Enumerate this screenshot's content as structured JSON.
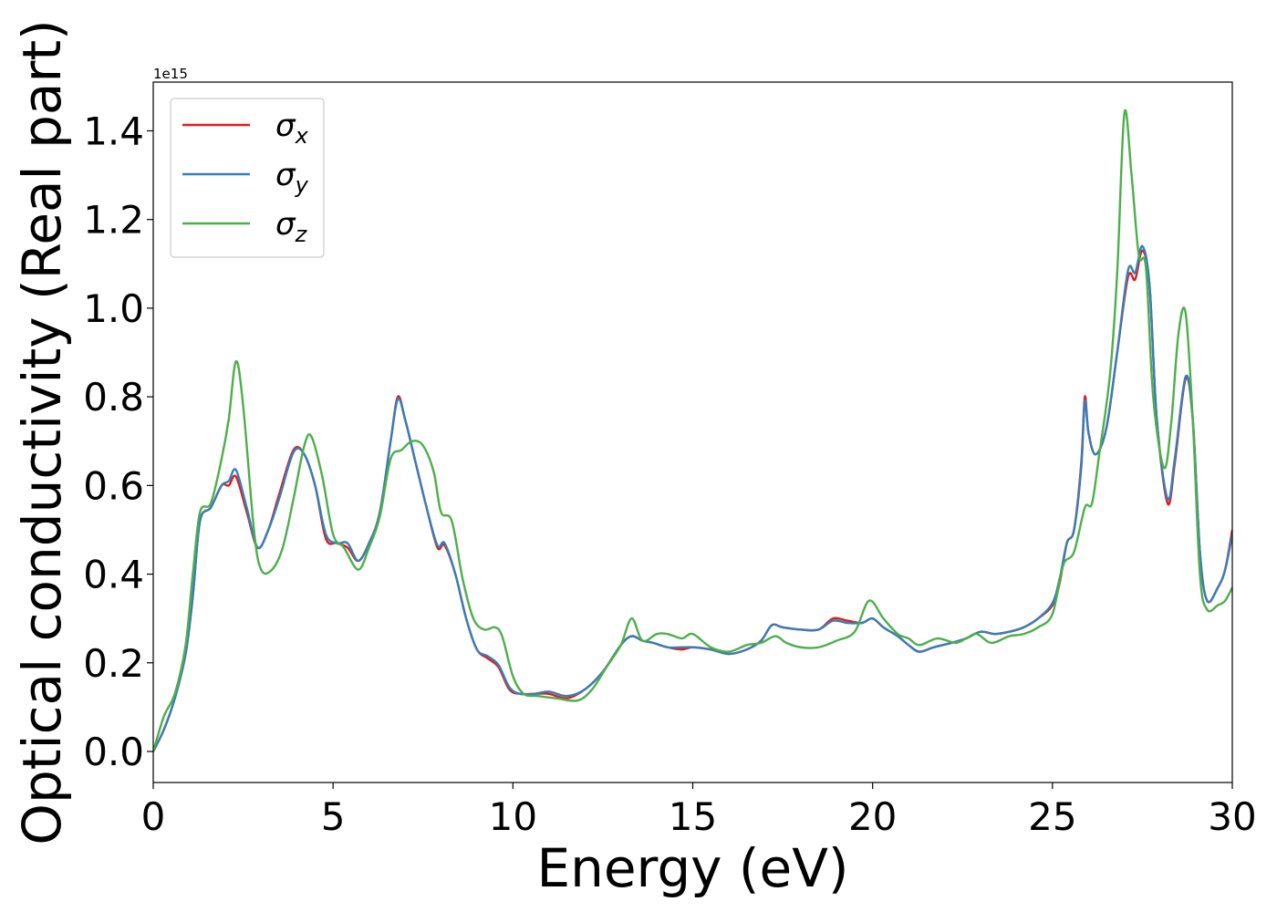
{
  "chart_data": {
    "type": "line",
    "xlabel": "Energy (eV)",
    "ylabel": "Optical conductivity (Real part)",
    "y_offset_text": "1e15",
    "xlim": [
      0,
      30
    ],
    "ylim": [
      -0.07,
      1.51
    ],
    "x_ticks": [
      0,
      5,
      10,
      15,
      20,
      25,
      30
    ],
    "x_tick_labels": [
      "0",
      "5",
      "10",
      "15",
      "20",
      "25",
      "30"
    ],
    "y_ticks": [
      0.0,
      0.2,
      0.4,
      0.6,
      0.8,
      1.0,
      1.2,
      1.4
    ],
    "y_tick_labels": [
      "0.0",
      "0.2",
      "0.4",
      "0.6",
      "0.8",
      "1.0",
      "1.2",
      "1.4"
    ],
    "grid": false,
    "legend_position": "top-left",
    "series": [
      {
        "name": "σ",
        "subscript": "x",
        "color": "#e41a1c",
        "points": [
          [
            0,
            0
          ],
          [
            0.3,
            0.05
          ],
          [
            0.6,
            0.12
          ],
          [
            0.9,
            0.22
          ],
          [
            1.1,
            0.35
          ],
          [
            1.3,
            0.52
          ],
          [
            1.6,
            0.55
          ],
          [
            1.9,
            0.6
          ],
          [
            2.1,
            0.6
          ],
          [
            2.3,
            0.62
          ],
          [
            2.6,
            0.54
          ],
          [
            2.9,
            0.46
          ],
          [
            3.2,
            0.5
          ],
          [
            3.5,
            0.58
          ],
          [
            3.9,
            0.68
          ],
          [
            4.2,
            0.67
          ],
          [
            4.5,
            0.6
          ],
          [
            4.8,
            0.48
          ],
          [
            5.1,
            0.47
          ],
          [
            5.4,
            0.46
          ],
          [
            5.7,
            0.43
          ],
          [
            6.0,
            0.47
          ],
          [
            6.3,
            0.54
          ],
          [
            6.6,
            0.7
          ],
          [
            6.8,
            0.8
          ],
          [
            7.0,
            0.75
          ],
          [
            7.3,
            0.65
          ],
          [
            7.6,
            0.55
          ],
          [
            7.9,
            0.46
          ],
          [
            8.1,
            0.465
          ],
          [
            8.4,
            0.4
          ],
          [
            8.7,
            0.3
          ],
          [
            9.0,
            0.23
          ],
          [
            9.3,
            0.21
          ],
          [
            9.6,
            0.19
          ],
          [
            9.9,
            0.14
          ],
          [
            10.2,
            0.13
          ],
          [
            10.6,
            0.13
          ],
          [
            11.0,
            0.13
          ],
          [
            11.5,
            0.12
          ],
          [
            12.0,
            0.14
          ],
          [
            12.5,
            0.18
          ],
          [
            13.0,
            0.24
          ],
          [
            13.3,
            0.26
          ],
          [
            13.6,
            0.25
          ],
          [
            13.9,
            0.245
          ],
          [
            14.3,
            0.235
          ],
          [
            14.7,
            0.23
          ],
          [
            15.0,
            0.235
          ],
          [
            15.5,
            0.23
          ],
          [
            16.0,
            0.22
          ],
          [
            16.5,
            0.23
          ],
          [
            16.9,
            0.25
          ],
          [
            17.2,
            0.285
          ],
          [
            17.5,
            0.28
          ],
          [
            18.0,
            0.275
          ],
          [
            18.5,
            0.275
          ],
          [
            18.9,
            0.3
          ],
          [
            19.3,
            0.295
          ],
          [
            19.7,
            0.29
          ],
          [
            20.0,
            0.3
          ],
          [
            20.3,
            0.28
          ],
          [
            20.7,
            0.26
          ],
          [
            21.0,
            0.24
          ],
          [
            21.3,
            0.225
          ],
          [
            21.7,
            0.235
          ],
          [
            22.2,
            0.245
          ],
          [
            22.6,
            0.255
          ],
          [
            23.0,
            0.27
          ],
          [
            23.4,
            0.265
          ],
          [
            23.8,
            0.27
          ],
          [
            24.2,
            0.28
          ],
          [
            24.6,
            0.3
          ],
          [
            25.0,
            0.33
          ],
          [
            25.2,
            0.38
          ],
          [
            25.4,
            0.47
          ],
          [
            25.6,
            0.5
          ],
          [
            25.8,
            0.65
          ],
          [
            25.9,
            0.8
          ],
          [
            26.0,
            0.72
          ],
          [
            26.2,
            0.67
          ],
          [
            26.5,
            0.73
          ],
          [
            26.8,
            0.9
          ],
          [
            27.1,
            1.07
          ],
          [
            27.3,
            1.065
          ],
          [
            27.5,
            1.13
          ],
          [
            27.7,
            1.05
          ],
          [
            27.9,
            0.75
          ],
          [
            28.2,
            0.56
          ],
          [
            28.4,
            0.65
          ],
          [
            28.7,
            0.84
          ],
          [
            28.9,
            0.75
          ],
          [
            29.1,
            0.45
          ],
          [
            29.3,
            0.34
          ],
          [
            29.6,
            0.37
          ],
          [
            29.8,
            0.41
          ],
          [
            30.0,
            0.5
          ]
        ]
      },
      {
        "name": "σ",
        "subscript": "y",
        "color": "#377eb8",
        "points": [
          [
            0,
            0
          ],
          [
            0.3,
            0.05
          ],
          [
            0.6,
            0.12
          ],
          [
            0.9,
            0.22
          ],
          [
            1.1,
            0.35
          ],
          [
            1.3,
            0.52
          ],
          [
            1.6,
            0.55
          ],
          [
            1.9,
            0.6
          ],
          [
            2.1,
            0.61
          ],
          [
            2.3,
            0.635
          ],
          [
            2.6,
            0.55
          ],
          [
            2.9,
            0.46
          ],
          [
            3.2,
            0.5
          ],
          [
            3.5,
            0.57
          ],
          [
            3.9,
            0.675
          ],
          [
            4.2,
            0.67
          ],
          [
            4.5,
            0.6
          ],
          [
            4.8,
            0.49
          ],
          [
            5.1,
            0.47
          ],
          [
            5.4,
            0.47
          ],
          [
            5.7,
            0.43
          ],
          [
            6.0,
            0.47
          ],
          [
            6.3,
            0.54
          ],
          [
            6.6,
            0.7
          ],
          [
            6.8,
            0.795
          ],
          [
            7.0,
            0.75
          ],
          [
            7.3,
            0.65
          ],
          [
            7.6,
            0.55
          ],
          [
            7.9,
            0.465
          ],
          [
            8.1,
            0.47
          ],
          [
            8.4,
            0.4
          ],
          [
            8.7,
            0.3
          ],
          [
            9.0,
            0.23
          ],
          [
            9.3,
            0.215
          ],
          [
            9.6,
            0.195
          ],
          [
            9.9,
            0.145
          ],
          [
            10.2,
            0.13
          ],
          [
            10.6,
            0.13
          ],
          [
            11.0,
            0.135
          ],
          [
            11.5,
            0.125
          ],
          [
            12.0,
            0.14
          ],
          [
            12.5,
            0.18
          ],
          [
            13.0,
            0.24
          ],
          [
            13.3,
            0.26
          ],
          [
            13.6,
            0.25
          ],
          [
            13.9,
            0.245
          ],
          [
            14.3,
            0.235
          ],
          [
            14.7,
            0.235
          ],
          [
            15.0,
            0.235
          ],
          [
            15.5,
            0.23
          ],
          [
            16.0,
            0.22
          ],
          [
            16.5,
            0.23
          ],
          [
            16.9,
            0.25
          ],
          [
            17.2,
            0.285
          ],
          [
            17.5,
            0.28
          ],
          [
            18.0,
            0.275
          ],
          [
            18.5,
            0.275
          ],
          [
            18.9,
            0.295
          ],
          [
            19.3,
            0.29
          ],
          [
            19.7,
            0.29
          ],
          [
            20.0,
            0.3
          ],
          [
            20.3,
            0.28
          ],
          [
            20.7,
            0.26
          ],
          [
            21.0,
            0.24
          ],
          [
            21.3,
            0.225
          ],
          [
            21.7,
            0.235
          ],
          [
            22.2,
            0.245
          ],
          [
            22.6,
            0.255
          ],
          [
            23.0,
            0.27
          ],
          [
            23.4,
            0.265
          ],
          [
            23.8,
            0.27
          ],
          [
            24.2,
            0.28
          ],
          [
            24.6,
            0.3
          ],
          [
            25.0,
            0.335
          ],
          [
            25.2,
            0.39
          ],
          [
            25.4,
            0.47
          ],
          [
            25.6,
            0.5
          ],
          [
            25.8,
            0.64
          ],
          [
            25.9,
            0.79
          ],
          [
            26.0,
            0.72
          ],
          [
            26.2,
            0.67
          ],
          [
            26.5,
            0.73
          ],
          [
            26.8,
            0.9
          ],
          [
            27.1,
            1.085
          ],
          [
            27.3,
            1.08
          ],
          [
            27.5,
            1.14
          ],
          [
            27.7,
            1.05
          ],
          [
            27.9,
            0.75
          ],
          [
            28.2,
            0.57
          ],
          [
            28.4,
            0.66
          ],
          [
            28.7,
            0.845
          ],
          [
            28.9,
            0.75
          ],
          [
            29.1,
            0.45
          ],
          [
            29.3,
            0.34
          ],
          [
            29.6,
            0.37
          ],
          [
            29.8,
            0.41
          ],
          [
            30.0,
            0.49
          ]
        ]
      },
      {
        "name": "σ",
        "subscript": "z",
        "color": "#4daf4a",
        "points": [
          [
            0,
            0
          ],
          [
            0.3,
            0.08
          ],
          [
            0.6,
            0.13
          ],
          [
            0.9,
            0.24
          ],
          [
            1.1,
            0.4
          ],
          [
            1.3,
            0.54
          ],
          [
            1.6,
            0.56
          ],
          [
            1.9,
            0.66
          ],
          [
            2.1,
            0.75
          ],
          [
            2.3,
            0.88
          ],
          [
            2.5,
            0.78
          ],
          [
            2.8,
            0.5
          ],
          [
            3.0,
            0.41
          ],
          [
            3.3,
            0.41
          ],
          [
            3.6,
            0.46
          ],
          [
            3.9,
            0.57
          ],
          [
            4.2,
            0.69
          ],
          [
            4.4,
            0.71
          ],
          [
            4.7,
            0.62
          ],
          [
            5.0,
            0.49
          ],
          [
            5.3,
            0.46
          ],
          [
            5.7,
            0.41
          ],
          [
            6.0,
            0.46
          ],
          [
            6.3,
            0.53
          ],
          [
            6.6,
            0.66
          ],
          [
            6.9,
            0.68
          ],
          [
            7.2,
            0.7
          ],
          [
            7.5,
            0.69
          ],
          [
            7.8,
            0.63
          ],
          [
            8.0,
            0.54
          ],
          [
            8.3,
            0.52
          ],
          [
            8.6,
            0.39
          ],
          [
            8.9,
            0.3
          ],
          [
            9.2,
            0.275
          ],
          [
            9.5,
            0.28
          ],
          [
            9.7,
            0.26
          ],
          [
            10.0,
            0.17
          ],
          [
            10.3,
            0.13
          ],
          [
            10.7,
            0.125
          ],
          [
            11.2,
            0.12
          ],
          [
            11.8,
            0.115
          ],
          [
            12.2,
            0.14
          ],
          [
            12.6,
            0.19
          ],
          [
            13.0,
            0.24
          ],
          [
            13.3,
            0.3
          ],
          [
            13.6,
            0.25
          ],
          [
            14.0,
            0.265
          ],
          [
            14.3,
            0.265
          ],
          [
            14.7,
            0.255
          ],
          [
            15.0,
            0.265
          ],
          [
            15.5,
            0.235
          ],
          [
            16.0,
            0.225
          ],
          [
            16.5,
            0.24
          ],
          [
            16.9,
            0.245
          ],
          [
            17.3,
            0.26
          ],
          [
            17.6,
            0.245
          ],
          [
            18.0,
            0.235
          ],
          [
            18.5,
            0.235
          ],
          [
            19.0,
            0.25
          ],
          [
            19.5,
            0.27
          ],
          [
            19.9,
            0.34
          ],
          [
            20.3,
            0.3
          ],
          [
            20.7,
            0.265
          ],
          [
            21.0,
            0.255
          ],
          [
            21.3,
            0.24
          ],
          [
            21.8,
            0.255
          ],
          [
            22.3,
            0.245
          ],
          [
            22.6,
            0.255
          ],
          [
            22.9,
            0.265
          ],
          [
            23.3,
            0.245
          ],
          [
            23.8,
            0.26
          ],
          [
            24.2,
            0.265
          ],
          [
            24.6,
            0.28
          ],
          [
            25.0,
            0.31
          ],
          [
            25.3,
            0.42
          ],
          [
            25.6,
            0.45
          ],
          [
            25.9,
            0.55
          ],
          [
            26.1,
            0.56
          ],
          [
            26.3,
            0.67
          ],
          [
            26.6,
            0.85
          ],
          [
            26.8,
            1.08
          ],
          [
            27.0,
            1.44
          ],
          [
            27.2,
            1.3
          ],
          [
            27.4,
            1.12
          ],
          [
            27.6,
            1.09
          ],
          [
            27.8,
            0.8
          ],
          [
            28.1,
            0.64
          ],
          [
            28.3,
            0.74
          ],
          [
            28.5,
            0.94
          ],
          [
            28.7,
            0.99
          ],
          [
            28.9,
            0.75
          ],
          [
            29.1,
            0.4
          ],
          [
            29.3,
            0.32
          ],
          [
            29.6,
            0.33
          ],
          [
            29.8,
            0.34
          ],
          [
            30.0,
            0.37
          ]
        ]
      }
    ]
  }
}
